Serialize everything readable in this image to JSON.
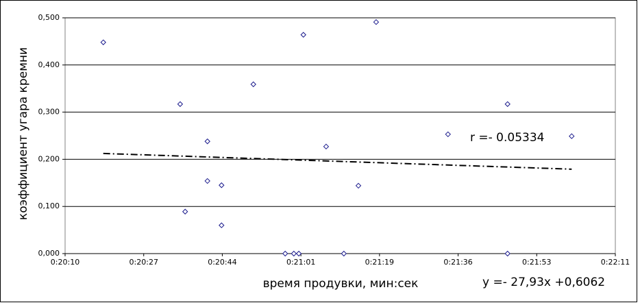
{
  "chart_data": {
    "type": "scatter",
    "y_axis_label": "коэффициент угара кремни",
    "x_axis_label": "время продувки, мин:сек",
    "annotation": "r =- 0.05334",
    "trendline": {
      "slope": -27.93,
      "intercept": 0.6062,
      "label": "y =- 27,93x +0,6062"
    },
    "x": [
      1218.4,
      1235.3,
      1236.4,
      1241.3,
      1241.3,
      1244.4,
      1244.4,
      1251.4,
      1258.4,
      1260.3,
      1261.4,
      1262.4,
      1267.4,
      1271.3,
      1274.5,
      1278.4,
      1294.2,
      1307.3,
      1307.3,
      1321.4
    ],
    "values": [
      0.448,
      0.317,
      0.089,
      0.238,
      0.154,
      0.145,
      0.06,
      0.359,
      0,
      0,
      0,
      0.464,
      0.227,
      0,
      0.144,
      0.491,
      0.253,
      0.317,
      0,
      0.249
    ],
    "color": "#1a1a8c",
    "xlim": [
      1210,
      1331
    ],
    "xticks": [
      {
        "value": 1210,
        "label": "0:20:10"
      },
      {
        "value": 1227.29,
        "label": "0:20:27"
      },
      {
        "value": 1244.57,
        "label": "0:20:44"
      },
      {
        "value": 1261.86,
        "label": "0:21:01"
      },
      {
        "value": 1279.14,
        "label": "0:21:19"
      },
      {
        "value": 1296.43,
        "label": "0:21:36"
      },
      {
        "value": 1313.71,
        "label": "0:21:53"
      },
      {
        "value": 1331,
        "label": "0:22:11"
      }
    ],
    "ylim": [
      0,
      0.5
    ],
    "yticks": [
      {
        "value": 0,
        "label": "0,000"
      },
      {
        "value": 0.1,
        "label": "0,100"
      },
      {
        "value": 0.2,
        "label": "0,200"
      },
      {
        "value": 0.3,
        "label": "0,300"
      },
      {
        "value": 0.4,
        "label": "0,400"
      },
      {
        "value": 0.5,
        "label": "0,500"
      }
    ],
    "grid": true
  }
}
